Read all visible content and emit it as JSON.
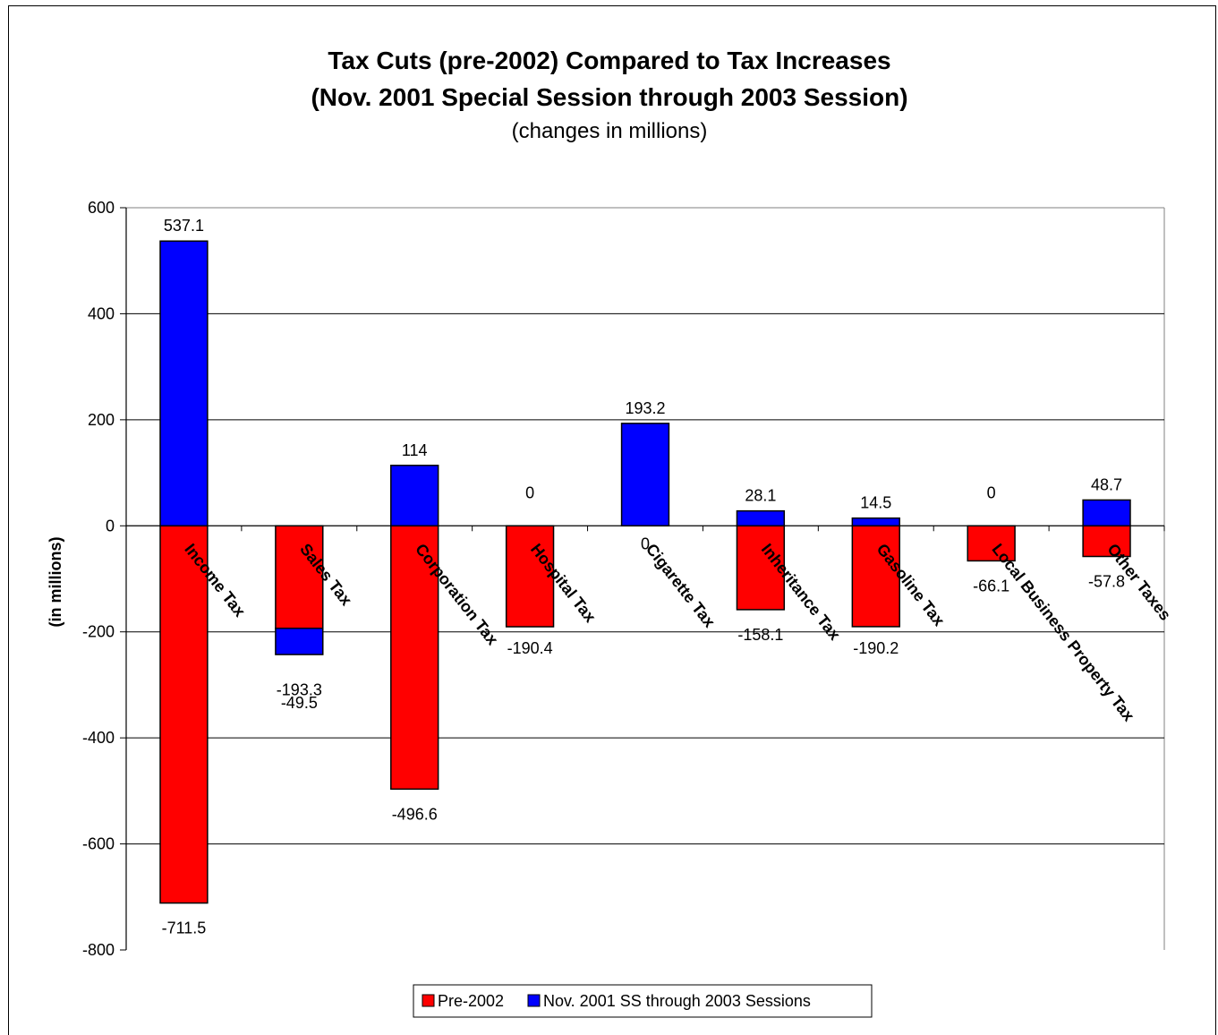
{
  "chart_data": {
    "type": "bar",
    "stacked": true,
    "title": "Tax Cuts (pre-2002) Compared to Tax Increases",
    "title_line2": "(Nov. 2001 Special Session through 2003 Session)",
    "subtitle": "(changes in millions)",
    "xlabel": "",
    "ylabel": "(in millions)",
    "ylim": [
      -800,
      600
    ],
    "yticks": [
      600,
      400,
      200,
      0,
      -200,
      -400,
      -600,
      -800
    ],
    "grid": true,
    "legend_position": "bottom",
    "categories": [
      "Income Tax",
      "Sales Tax",
      "Corporation Tax",
      "Hospital Tax",
      "Cigarette Tax",
      "Inheritance Tax",
      "Gasoline Tax",
      "Local Business Property Tax",
      "Other Taxes"
    ],
    "series": [
      {
        "name": "Pre-2002",
        "color": "#ff0000",
        "values": [
          -711.5,
          -193.3,
          -496.6,
          -190.4,
          0,
          -158.1,
          -190.2,
          -66.1,
          -57.8
        ]
      },
      {
        "name": "Nov. 2001 SS through 2003 Sessions",
        "color": "#0000ff",
        "values": [
          537.1,
          -49.5,
          114,
          0,
          193.2,
          28.1,
          14.5,
          0,
          48.7
        ]
      }
    ]
  }
}
